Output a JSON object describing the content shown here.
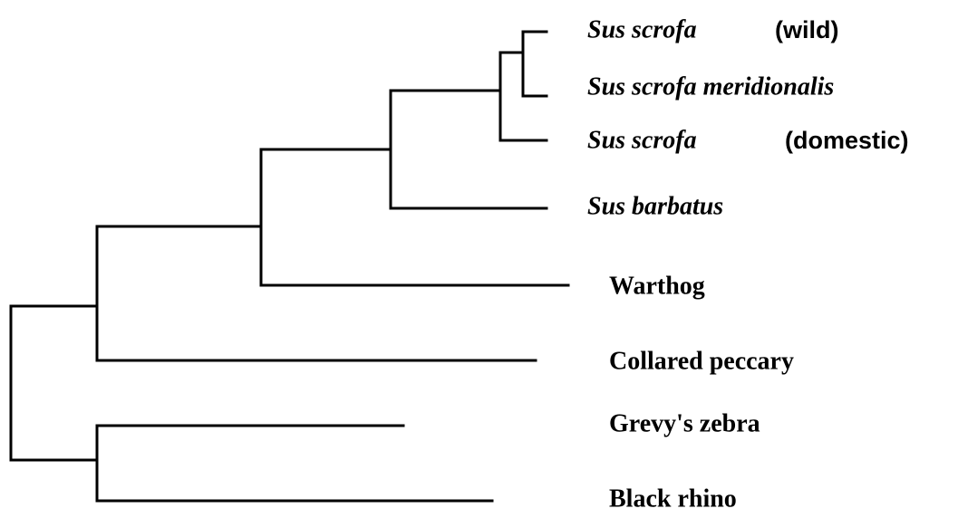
{
  "leaves": [
    {
      "name": "Sus scrofa",
      "note": "(wild)"
    },
    {
      "name": "Sus scrofa meridionalis"
    },
    {
      "name": "Sus scrofa",
      "note": "(domestic)"
    },
    {
      "name": "Sus barbatus"
    },
    {
      "name": "Warthog"
    },
    {
      "name": "Collared peccary"
    },
    {
      "name": "Grevy's zebra"
    },
    {
      "name": "Black rhino"
    }
  ]
}
